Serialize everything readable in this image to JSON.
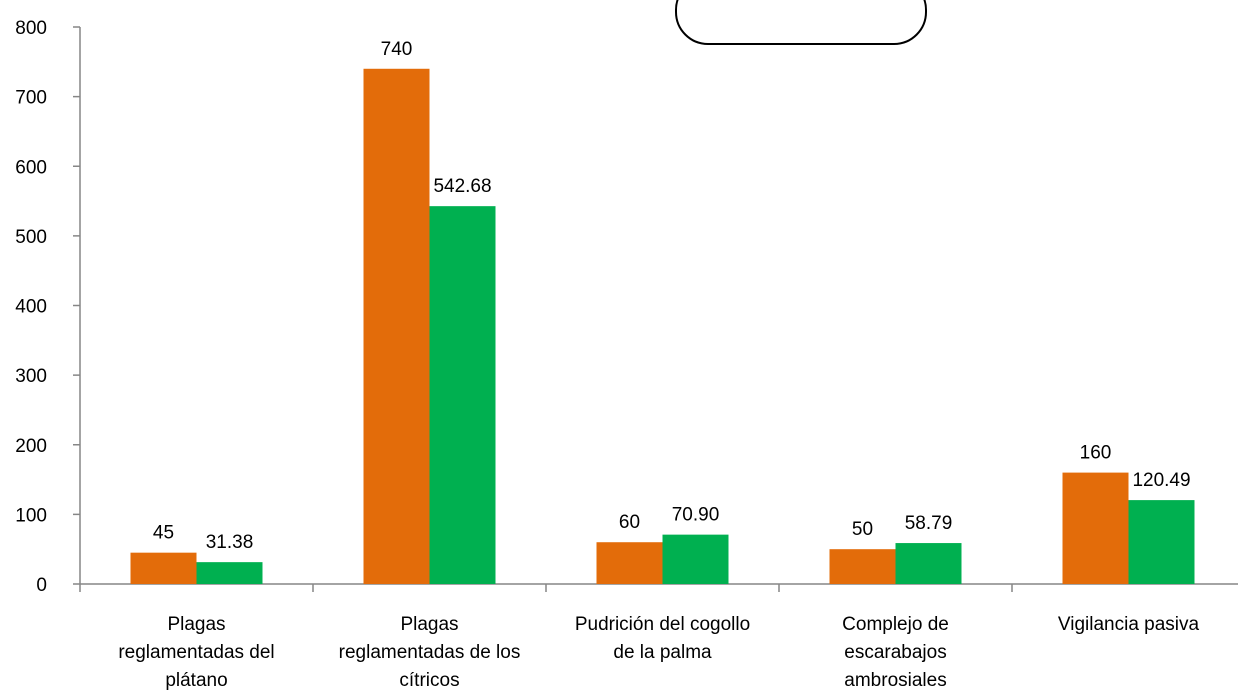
{
  "chart_data": {
    "type": "bar",
    "title": "",
    "xlabel": "",
    "ylabel": "",
    "ylim": [
      0,
      800
    ],
    "yticks": [
      0,
      100,
      200,
      300,
      400,
      500,
      600,
      700,
      800
    ],
    "ytick_labels": [
      "0",
      "100",
      "200",
      "300",
      "400",
      "500",
      "600",
      "700",
      "800"
    ],
    "categories": [
      [
        "Plagas",
        "reglamentadas del",
        "plátano"
      ],
      [
        "Plagas",
        "reglamentadas de los",
        "cítricos"
      ],
      [
        "Pudrición del cogollo",
        "de la palma"
      ],
      [
        "Complejo de",
        "escarabajos",
        "ambrosiales"
      ],
      [
        "Vigilancia pasiva"
      ]
    ],
    "series": [
      {
        "values": [
          45,
          740,
          60,
          50,
          160
        ],
        "labels": [
          "45",
          "740",
          "60",
          "50",
          "160"
        ],
        "color": "#E36C0A"
      },
      {
        "values": [
          31.38,
          542.68,
          70.9,
          58.79,
          120.49
        ],
        "labels": [
          "31.38",
          "542.68",
          "70.90",
          "58.79",
          "120.49"
        ],
        "color": "#00B050"
      }
    ],
    "grid": false,
    "legend": "none"
  }
}
